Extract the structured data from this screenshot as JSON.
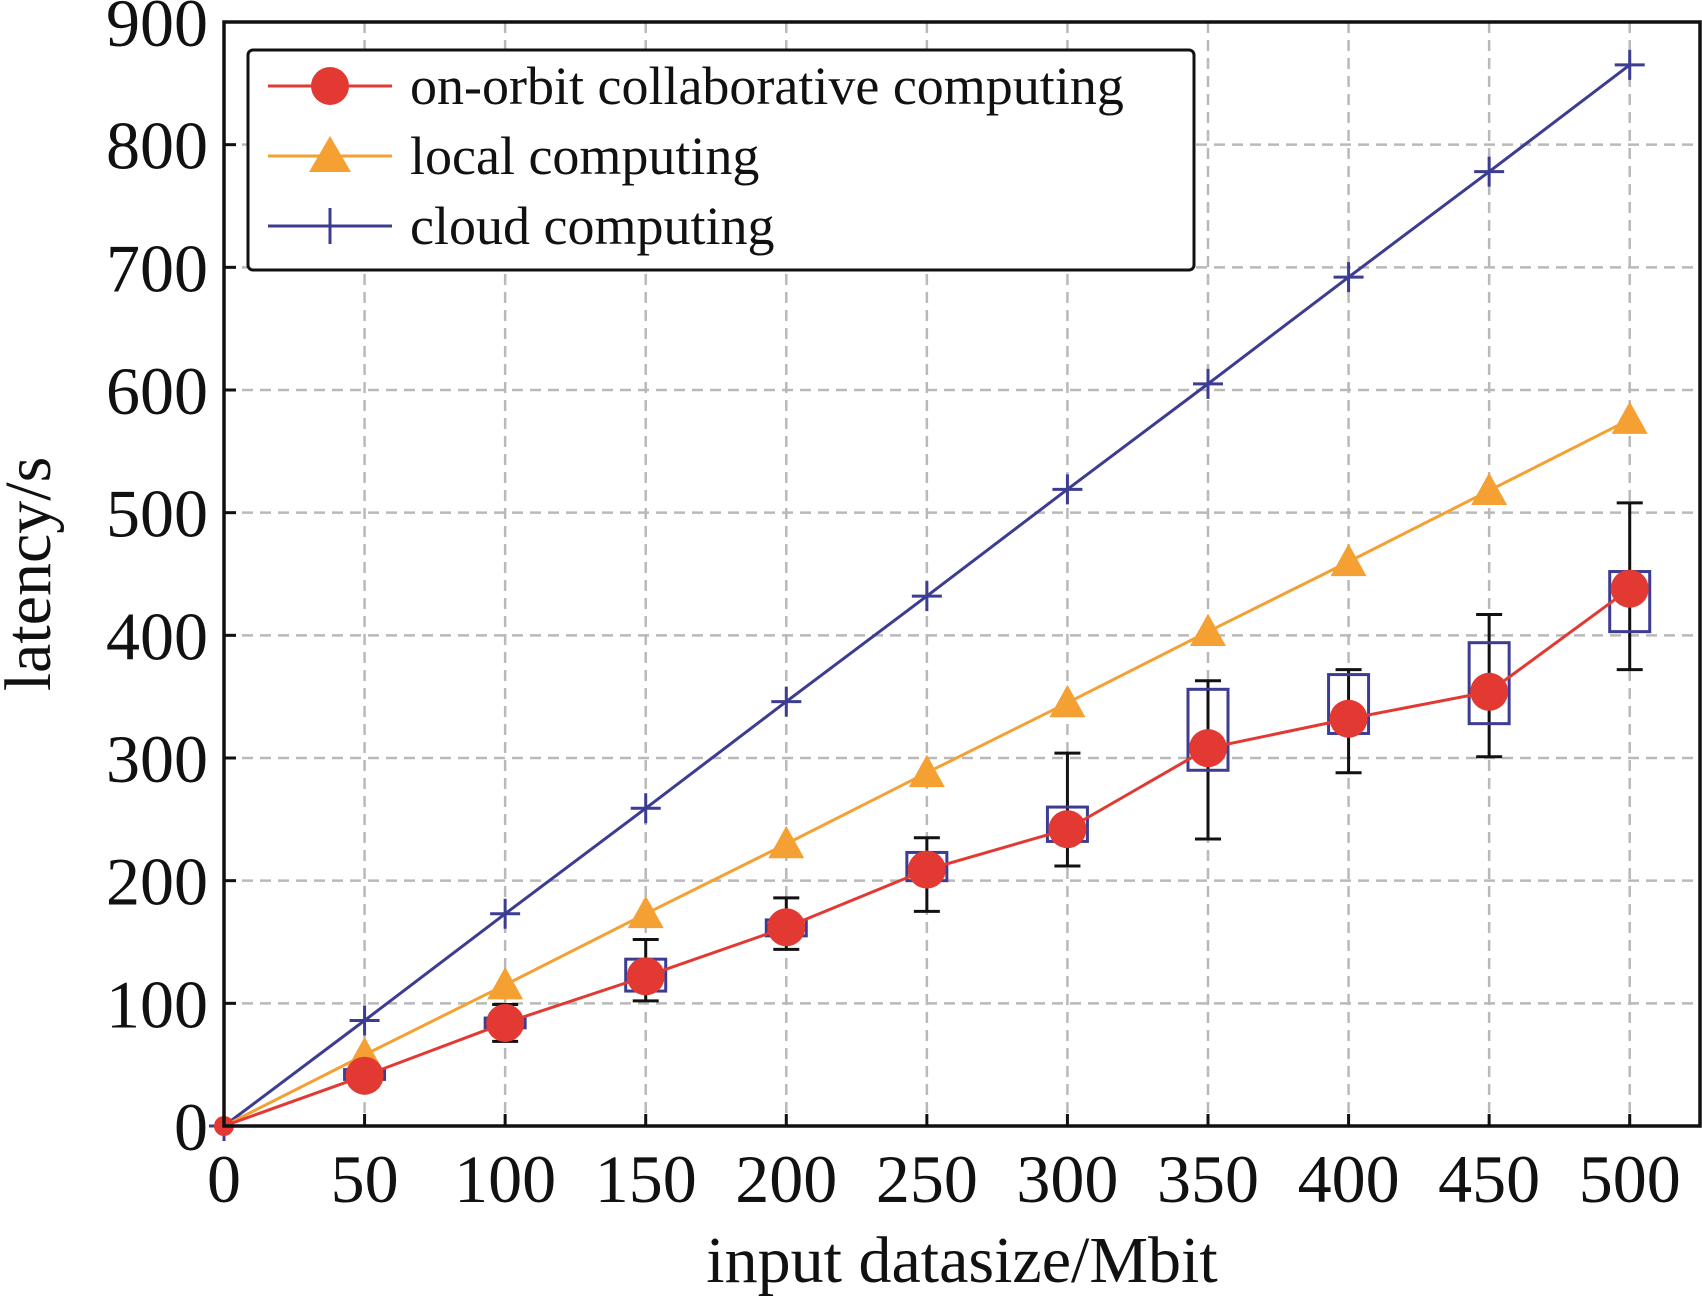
{
  "chart_data": {
    "type": "line",
    "xlabel": "input datasize/Mbit",
    "ylabel": "latency/s",
    "xlim": [
      0,
      525
    ],
    "ylim": [
      0,
      900
    ],
    "xticks": [
      0,
      50,
      100,
      150,
      200,
      250,
      300,
      350,
      400,
      450,
      500
    ],
    "yticks": [
      0,
      100,
      200,
      300,
      400,
      500,
      600,
      700,
      800,
      900
    ],
    "grid": true,
    "legend_position": "top-left",
    "x": [
      0,
      50,
      100,
      150,
      200,
      250,
      300,
      350,
      400,
      450,
      500
    ],
    "series": [
      {
        "name": "on-orbit collaborative computing",
        "color": "#e23a33",
        "marker": "circle",
        "values": [
          0,
          41,
          84,
          122,
          162,
          209,
          242,
          308,
          332,
          354,
          438
        ],
        "error_bars": {
          "low": [
            0,
            35,
            69,
            102,
            144,
            175,
            212,
            234,
            288,
            301,
            372
          ],
          "high": [
            0,
            50,
            99,
            152,
            186,
            235,
            304,
            363,
            372,
            417,
            508
          ]
        },
        "boxes": {
          "low": [
            0,
            38,
            80,
            110,
            155,
            200,
            232,
            290,
            320,
            328,
            403
          ],
          "high": [
            0,
            46,
            88,
            136,
            168,
            223,
            260,
            356,
            368,
            394,
            452
          ]
        }
      },
      {
        "name": "local computing",
        "color": "#f5a033",
        "marker": "triangle",
        "values": [
          0,
          58,
          115,
          173,
          230,
          288,
          345,
          403,
          460,
          518,
          576
        ]
      },
      {
        "name": "cloud computing",
        "color": "#3c3c92",
        "marker": "plus",
        "values": [
          0,
          86,
          173,
          259,
          346,
          432,
          519,
          605,
          692,
          778,
          865
        ]
      }
    ],
    "box_color": "#3c3c92",
    "errorbar_color": "#111111"
  }
}
